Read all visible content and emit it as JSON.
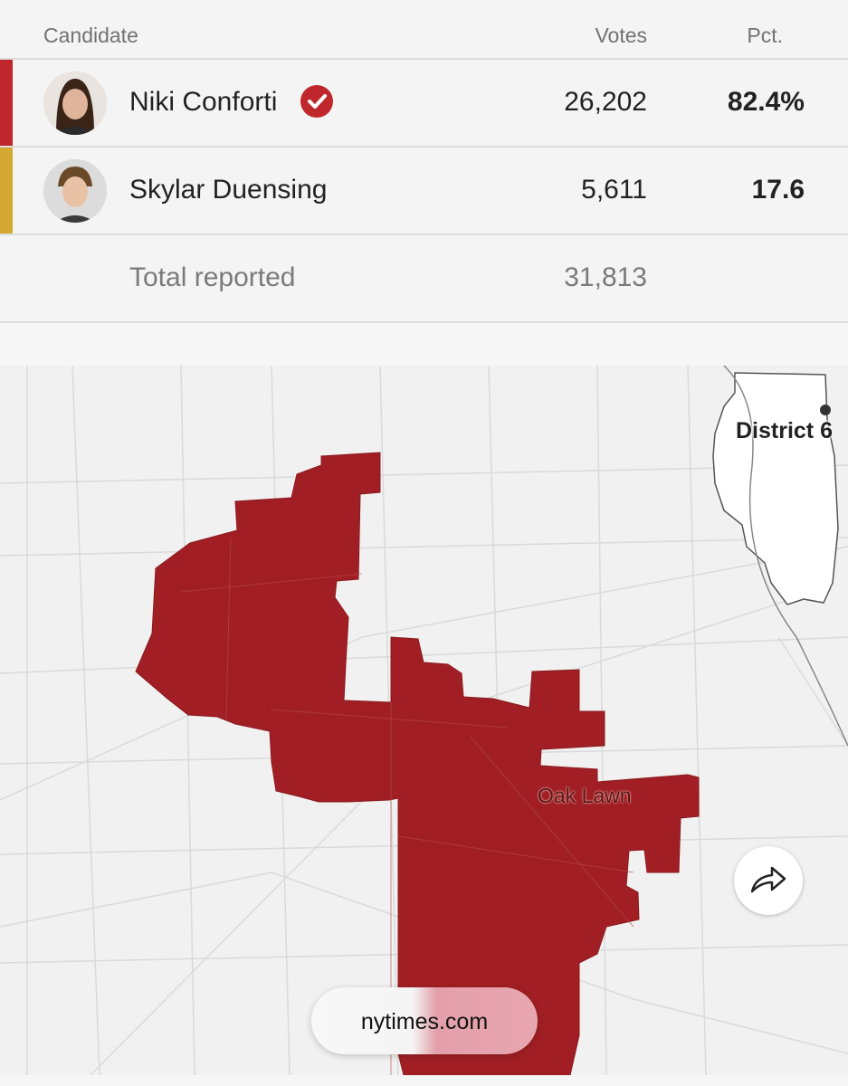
{
  "table": {
    "headers": {
      "candidate": "Candidate",
      "votes": "Votes",
      "pct": "Pct."
    },
    "rows": [
      {
        "name": "Niki Conforti",
        "votes": "26,202",
        "pct": "82.4%",
        "winner": true,
        "color": "#c0272d",
        "avatar_icon": "candidate-photo"
      },
      {
        "name": "Skylar Duensing",
        "votes": "5,611",
        "pct": "17.6",
        "winner": false,
        "color": "#d4a832",
        "avatar_icon": "candidate-photo"
      }
    ],
    "total": {
      "label": "Total reported",
      "votes": "31,813"
    }
  },
  "map": {
    "district_label": "District 6",
    "city_label": "Oak Lawn",
    "district_color": "#a11f24",
    "share_icon": "share-arrow-icon"
  },
  "browser": {
    "url": "nytimes.com"
  }
}
